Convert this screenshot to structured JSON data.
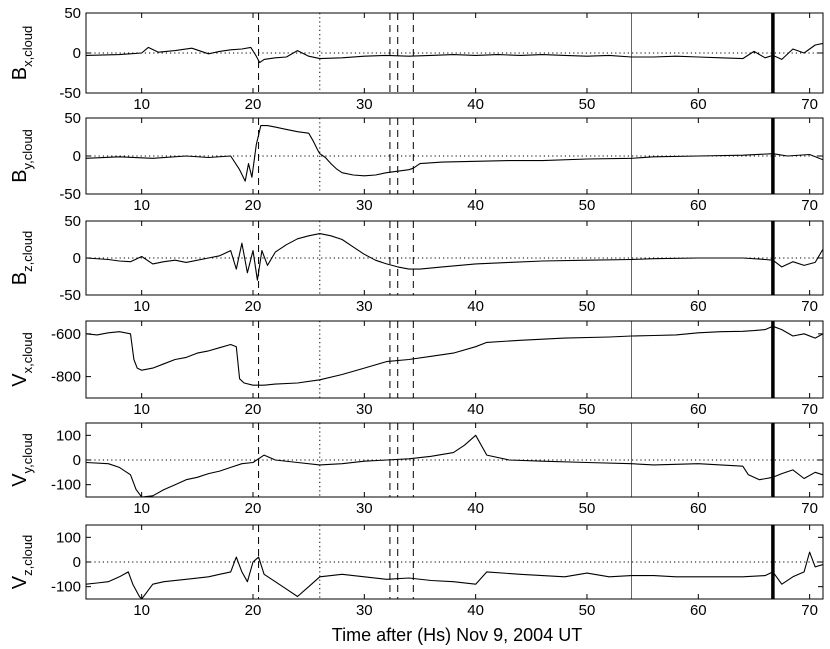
{
  "xlabel": "Time after (Hs) Nov 9, 2004 UT",
  "chart_data": {
    "type": "line",
    "xlim": [
      5,
      71.2
    ],
    "x_ticks": [
      10,
      20,
      30,
      40,
      50,
      60,
      70
    ],
    "vertical_markers": {
      "dashed": [
        20.5,
        32.3,
        33.0,
        34.4
      ],
      "dotted": [
        26.0
      ],
      "thin_solid": [
        54.0
      ],
      "thick_solid": [
        66.7
      ]
    },
    "panels": [
      {
        "id": "bx",
        "ylabel_main": "B",
        "ylabel_sub": "x,cloud",
        "ylim": [
          -50,
          50
        ],
        "y_ticks": [
          50,
          0,
          -50
        ],
        "zero_line": true,
        "series": {
          "x": [
            5,
            8,
            10,
            10.6,
            11.5,
            13,
            14.5,
            16,
            17,
            18,
            19,
            19.8,
            20.3,
            20.6,
            21,
            22,
            23,
            24,
            25,
            26,
            28,
            30,
            32,
            34,
            36,
            38,
            40,
            42,
            44,
            46,
            48,
            50,
            52,
            54,
            56,
            58,
            60,
            62,
            64,
            65,
            66,
            66.7,
            67.5,
            68.5,
            69.5,
            70.5,
            71.2
          ],
          "y": [
            -3,
            -2,
            0,
            7,
            1,
            3,
            6,
            -1,
            2,
            4,
            5,
            7,
            -4,
            -12,
            -8,
            -6,
            -5,
            3,
            -4,
            -7,
            -6,
            -4,
            -3,
            -4,
            -3,
            -2,
            -3,
            -2,
            -3,
            -2,
            -3,
            -4,
            -3,
            -5,
            -5,
            -4,
            -5,
            -6,
            -7,
            2,
            -6,
            -3,
            -8,
            5,
            0,
            10,
            12
          ]
        }
      },
      {
        "id": "by",
        "ylabel_main": "B",
        "ylabel_sub": "y,cloud",
        "ylim": [
          -50,
          50
        ],
        "y_ticks": [
          50,
          0,
          -50
        ],
        "zero_line": true,
        "series": {
          "x": [
            5,
            8,
            11,
            14,
            16,
            18,
            18.8,
            19.3,
            19.6,
            19.9,
            20.3,
            20.7,
            21.3,
            22,
            23,
            24,
            25,
            25.4,
            25.8,
            26,
            26.5,
            27,
            27.5,
            28,
            29,
            30,
            31,
            32,
            33,
            34,
            34.4,
            35,
            37,
            40,
            43,
            46,
            50,
            54,
            56,
            60,
            64,
            66.7,
            68,
            70,
            71.2
          ],
          "y": [
            -3,
            -1,
            -3,
            0,
            -2,
            0,
            -18,
            -33,
            -10,
            -28,
            15,
            40,
            40,
            38,
            35,
            32,
            30,
            20,
            8,
            3,
            -2,
            -10,
            -17,
            -22,
            -25,
            -26,
            -25,
            -22,
            -20,
            -18,
            -16,
            -10,
            -8,
            -7,
            -6,
            -6,
            -4,
            -3,
            -1,
            0,
            1,
            3,
            0,
            2,
            -5
          ]
        }
      },
      {
        "id": "bz",
        "ylabel_main": "B",
        "ylabel_sub": "z,cloud",
        "ylim": [
          -50,
          50
        ],
        "y_ticks": [
          50,
          0,
          -50
        ],
        "zero_line": true,
        "series": {
          "x": [
            5,
            7,
            8,
            9,
            10,
            11,
            12,
            13,
            14,
            16,
            17,
            18,
            18.5,
            19,
            19.5,
            20,
            20.4,
            20.8,
            21.3,
            22,
            23,
            24,
            25,
            26,
            27,
            28,
            29,
            30,
            31,
            32,
            33,
            34,
            35,
            37,
            40,
            43,
            46,
            50,
            54,
            56,
            60,
            64,
            66,
            66.7,
            67.5,
            68.5,
            69.5,
            70.5,
            71.2
          ],
          "y": [
            0,
            -2,
            -4,
            -5,
            2,
            -8,
            -5,
            -3,
            -6,
            0,
            3,
            10,
            -15,
            20,
            -20,
            10,
            -30,
            10,
            -10,
            8,
            18,
            26,
            30,
            33,
            30,
            25,
            15,
            5,
            -3,
            -8,
            -12,
            -15,
            -15,
            -12,
            -8,
            -6,
            -4,
            -3,
            -2,
            -1,
            0,
            0,
            -2,
            -3,
            -12,
            -5,
            -10,
            -6,
            12
          ]
        }
      },
      {
        "id": "vx",
        "ylabel_main": "V",
        "ylabel_sub": "x,cloud",
        "ylim": [
          -900,
          -540
        ],
        "y_ticks": [
          -600,
          -800
        ],
        "zero_line": false,
        "series": {
          "x": [
            5,
            6,
            7,
            8,
            9,
            9.3,
            9.6,
            10,
            11,
            12,
            13,
            14,
            15,
            16,
            17,
            18,
            18.5,
            18.8,
            19.2,
            20,
            21,
            22,
            24,
            26,
            28,
            30,
            32,
            34,
            36,
            38,
            40,
            41,
            44,
            48,
            52,
            54,
            56,
            58,
            60,
            62,
            64,
            65,
            66,
            66.7,
            67.5,
            68.5,
            69.5,
            70.5,
            71.2
          ],
          "y": [
            -600,
            -605,
            -595,
            -590,
            -600,
            -720,
            -760,
            -770,
            -760,
            -740,
            -720,
            -710,
            -690,
            -680,
            -665,
            -650,
            -660,
            -810,
            -830,
            -840,
            -840,
            -835,
            -830,
            -815,
            -790,
            -760,
            -730,
            -720,
            -705,
            -690,
            -660,
            -640,
            -630,
            -620,
            -615,
            -610,
            -608,
            -605,
            -595,
            -590,
            -588,
            -585,
            -580,
            -565,
            -580,
            -610,
            -600,
            -620,
            -600
          ]
        }
      },
      {
        "id": "vy",
        "ylabel_main": "V",
        "ylabel_sub": "y,cloud",
        "ylim": [
          -150,
          150
        ],
        "y_ticks": [
          100,
          0,
          -100
        ],
        "zero_line": true,
        "series": {
          "x": [
            5,
            7,
            8,
            9,
            9.5,
            10,
            11,
            12,
            13,
            14,
            15,
            16,
            17,
            18,
            19,
            20,
            21,
            22,
            24,
            26,
            28,
            30,
            32,
            34,
            36,
            38,
            39,
            40,
            41,
            43,
            46,
            50,
            54,
            56,
            60,
            62,
            64,
            64.5,
            65.5,
            66.7,
            67.5,
            68.5,
            69.5,
            70.5,
            71.2
          ],
          "y": [
            -10,
            -15,
            -30,
            -60,
            -120,
            -150,
            -145,
            -120,
            -100,
            -80,
            -70,
            -55,
            -45,
            -30,
            -15,
            -10,
            20,
            0,
            -10,
            -20,
            -15,
            -5,
            0,
            5,
            15,
            30,
            60,
            100,
            20,
            0,
            -5,
            -10,
            -15,
            -20,
            -15,
            -20,
            -25,
            -60,
            -80,
            -70,
            -55,
            -40,
            -75,
            -50,
            -60
          ]
        }
      },
      {
        "id": "vz",
        "ylabel_main": "V",
        "ylabel_sub": "z,cloud",
        "ylim": [
          -150,
          150
        ],
        "y_ticks": [
          100,
          0,
          -100
        ],
        "zero_line": true,
        "series": {
          "x": [
            5,
            6,
            7,
            8,
            8.8,
            9.2,
            9.8,
            10,
            11,
            12,
            14,
            16,
            17,
            18,
            18.5,
            19,
            19.5,
            20,
            20.5,
            21,
            22,
            23,
            24,
            25,
            26,
            28,
            30,
            32,
            34,
            36,
            38,
            40,
            41,
            44,
            48,
            50,
            52,
            54,
            56,
            58,
            60,
            62,
            64,
            66,
            66.7,
            67.5,
            68.5,
            69.5,
            70,
            70.5,
            71.2
          ],
          "y": [
            -90,
            -85,
            -80,
            -60,
            -40,
            -90,
            -140,
            -150,
            -90,
            -80,
            -70,
            -60,
            -50,
            -40,
            20,
            -40,
            -80,
            0,
            20,
            -50,
            -80,
            -110,
            -140,
            -100,
            -60,
            -50,
            -60,
            -70,
            -65,
            -75,
            -80,
            -90,
            -40,
            -50,
            -60,
            -45,
            -60,
            -55,
            -55,
            -60,
            -60,
            -60,
            -60,
            -55,
            -40,
            -90,
            -60,
            -40,
            40,
            -20,
            -10
          ]
        }
      }
    ]
  }
}
